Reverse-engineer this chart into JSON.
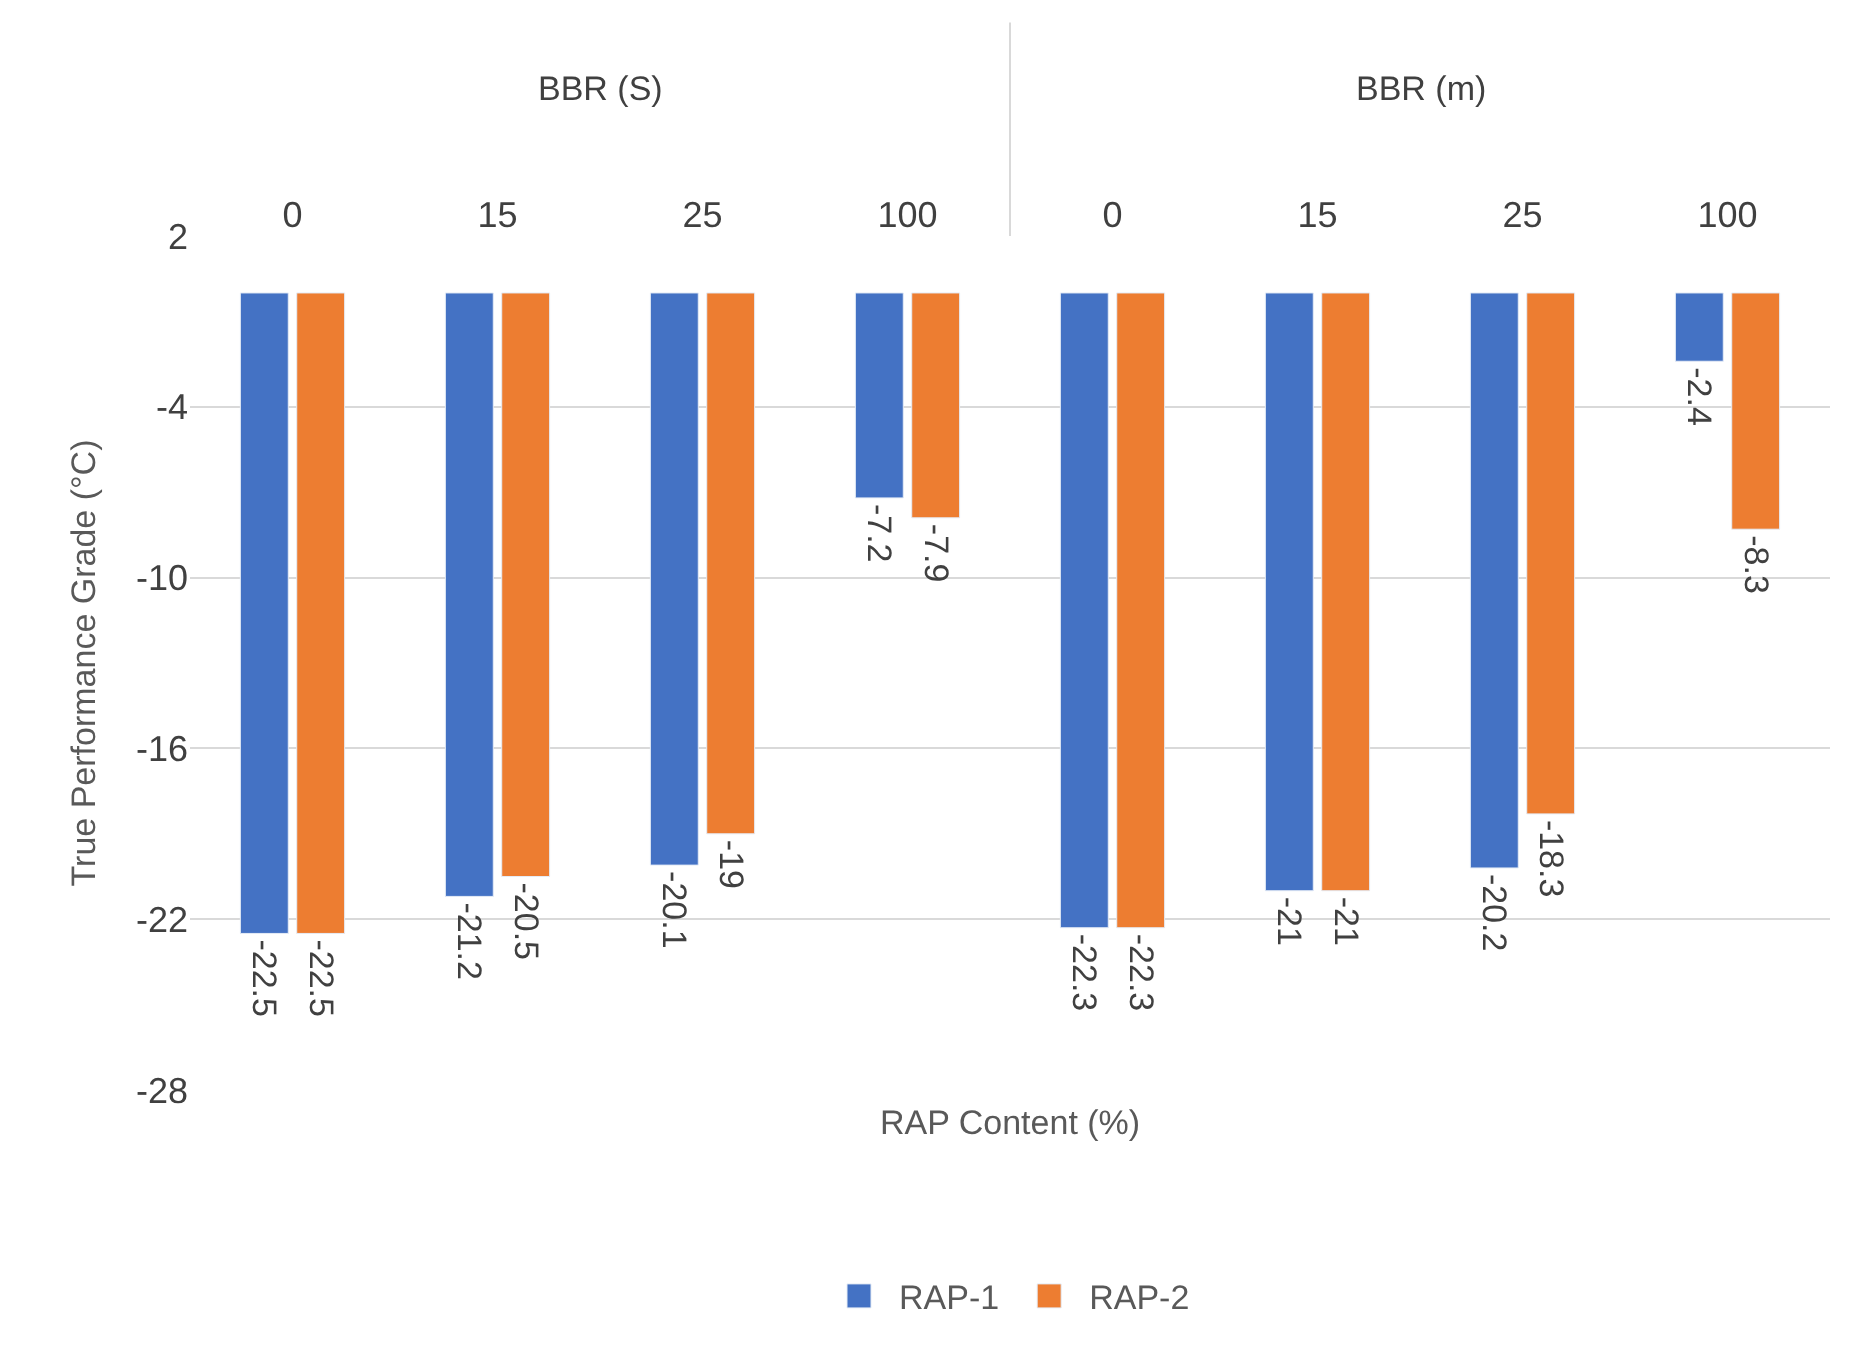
{
  "chart_data": {
    "type": "bar",
    "categories": [
      "0",
      "15",
      "25",
      "100",
      "0",
      "15",
      "25",
      "100"
    ],
    "series": [
      {
        "name": "RAP-1",
        "color": "#4472c4",
        "values": [
          -22.5,
          -21.2,
          -20.1,
          -7.2,
          -22.3,
          -21,
          -20.2,
          -2.4
        ]
      },
      {
        "name": "RAP-2",
        "color": "#ed7d31",
        "values": [
          -22.5,
          -20.5,
          -19,
          -7.9,
          -22.3,
          -21,
          -18.3,
          -8.3
        ]
      }
    ],
    "xlabel": "RAP Content (%)",
    "ylabel": "True Performance Grade (°C)",
    "annotations": [
      "BBR (S)",
      "BBR (m)"
    ],
    "ylim": [
      -28,
      2
    ],
    "yticks": [
      -28,
      -22,
      -16,
      -10,
      -4,
      2
    ],
    "grid": "y",
    "legend": "bottom",
    "data_labels": true
  }
}
